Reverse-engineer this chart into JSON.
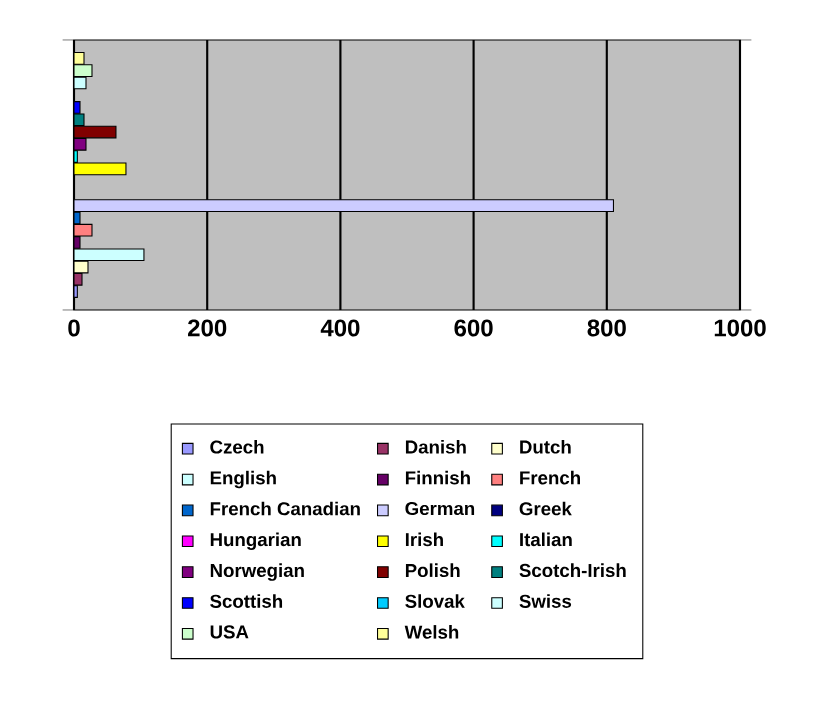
{
  "chart_data": {
    "type": "bar",
    "orientation": "horizontal",
    "categories": [
      null
    ],
    "series": [
      {
        "name": "Czech",
        "color": "#9999ff",
        "values": [
          5
        ]
      },
      {
        "name": "Danish",
        "color": "#993366",
        "values": [
          12
        ]
      },
      {
        "name": "Dutch",
        "color": "#ffffcc",
        "values": [
          21
        ]
      },
      {
        "name": "English",
        "color": "#ccffff",
        "values": [
          105
        ]
      },
      {
        "name": "Finnish",
        "color": "#660066",
        "values": [
          9
        ]
      },
      {
        "name": "French",
        "color": "#ff8080",
        "values": [
          27
        ]
      },
      {
        "name": "French Canadian",
        "color": "#0066cc",
        "values": [
          9
        ]
      },
      {
        "name": "German",
        "color": "#ccccff",
        "values": [
          810
        ]
      },
      {
        "name": "Greek",
        "color": "#000080",
        "values": [
          0
        ]
      },
      {
        "name": "Hungarian",
        "color": "#ff00ff",
        "values": [
          0
        ]
      },
      {
        "name": "Irish",
        "color": "#ffff00",
        "values": [
          78
        ]
      },
      {
        "name": "Italian",
        "color": "#00ffff",
        "values": [
          5
        ]
      },
      {
        "name": "Norwegian",
        "color": "#800080",
        "values": [
          18
        ]
      },
      {
        "name": "Polish",
        "color": "#800000",
        "values": [
          63
        ]
      },
      {
        "name": "Scotch-Irish",
        "color": "#008080",
        "values": [
          15
        ]
      },
      {
        "name": "Scottish",
        "color": "#0000ff",
        "values": [
          9
        ]
      },
      {
        "name": "Slovak",
        "color": "#00ccff",
        "values": [
          0
        ]
      },
      {
        "name": "Swiss",
        "color": "#ccffff",
        "values": [
          18
        ]
      },
      {
        "name": "USA",
        "color": "#ccffcc",
        "values": [
          27
        ]
      },
      {
        "name": "Welsh",
        "color": "#ffff99",
        "values": [
          15
        ]
      }
    ],
    "xlim": [
      0,
      1000
    ],
    "xticks": [
      0,
      200,
      400,
      600,
      800,
      1000
    ],
    "grid": "x",
    "legend": "bottom"
  }
}
